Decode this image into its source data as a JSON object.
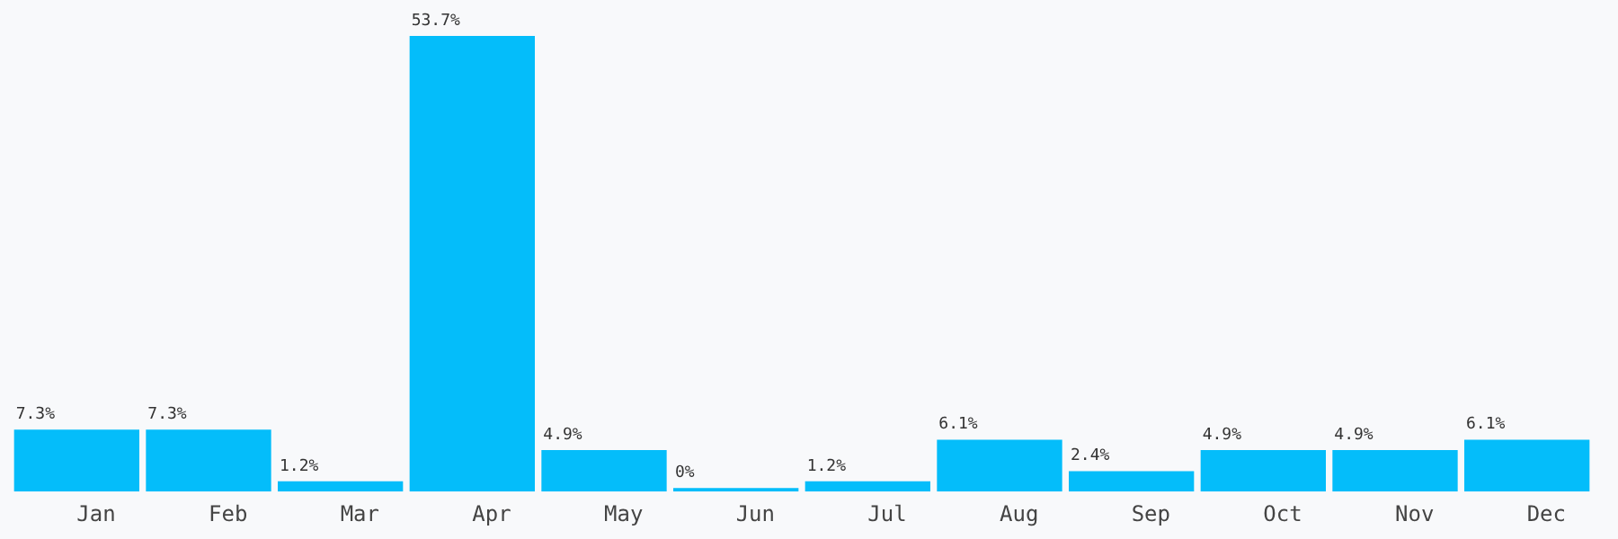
{
  "chart_data": {
    "type": "bar",
    "categories": [
      "Jan",
      "Feb",
      "Mar",
      "Apr",
      "May",
      "Jun",
      "Jul",
      "Aug",
      "Sep",
      "Oct",
      "Nov",
      "Dec"
    ],
    "values": [
      7.3,
      7.3,
      1.2,
      53.7,
      4.9,
      0,
      1.2,
      6.1,
      2.4,
      4.9,
      4.9,
      6.1
    ],
    "value_labels": [
      "7.3%",
      "7.3%",
      "1.2%",
      "53.7%",
      "4.9%",
      "0%",
      "1.2%",
      "6.1%",
      "2.4%",
      "4.9%",
      "4.9%",
      "6.1%"
    ],
    "color": "#04bdfa",
    "grid": false,
    "legend": false
  }
}
